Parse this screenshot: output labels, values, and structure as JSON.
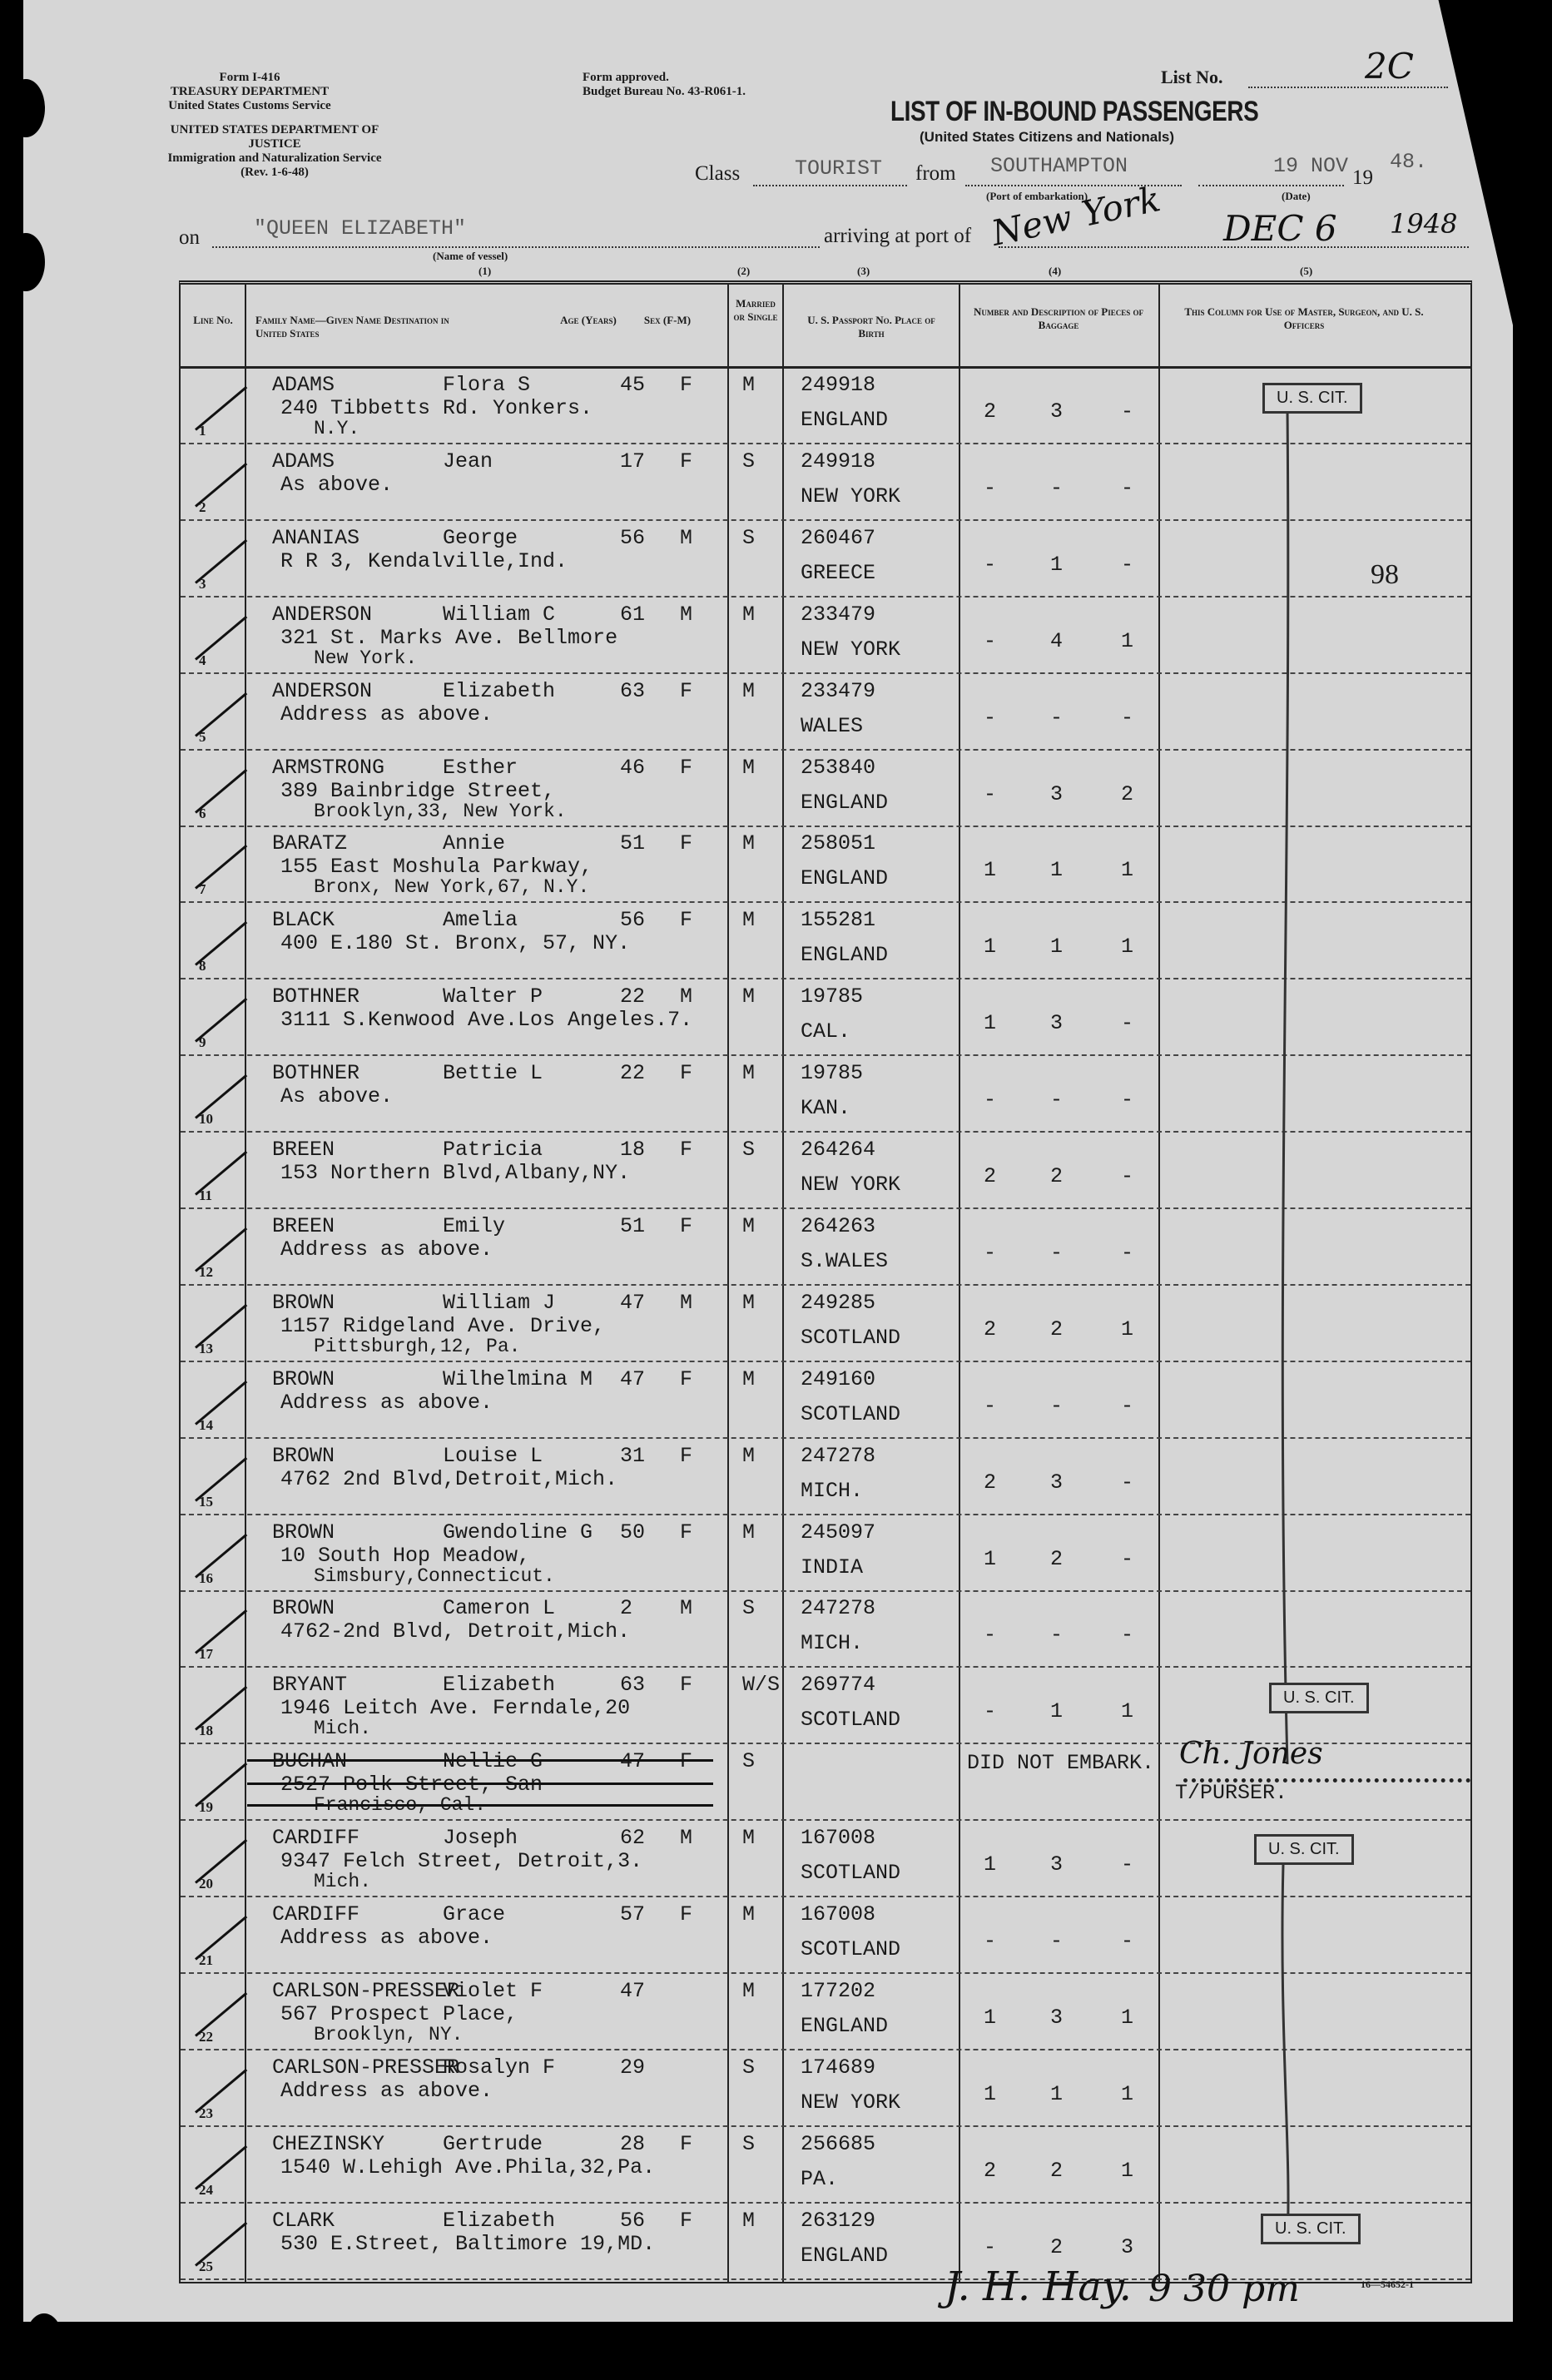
{
  "header": {
    "form": "Form I-416",
    "treasury": "TREASURY DEPARTMENT",
    "customs": "United States Customs Service",
    "justice": "UNITED STATES DEPARTMENT OF JUSTICE",
    "ins": "Immigration and Naturalization Service",
    "rev": "(Rev. 1-6-48)",
    "approved": "Form approved.",
    "budget": "Budget Bureau No. 43-R061-1.",
    "list_no_label": "List No.",
    "list_no": "2C",
    "title": "LIST OF IN-BOUND PASSENGERS",
    "subtitle": "(United States Citizens and Nationals)",
    "class_label": "Class",
    "class_value": "TOURIST",
    "from_label": "from",
    "from_value": "SOUTHAMPTON",
    "port_caption": "(Port of embarkation)",
    "date_value": "19 NOV",
    "year_prefix": "19",
    "year_value": "48.",
    "date_caption": "(Date)",
    "on_label": "on",
    "vessel": "\"QUEEN ELIZABETH\"",
    "vessel_caption": "(Name of vessel)",
    "arriving_label": "arriving at port of",
    "arrival_port": "New York",
    "arrival_date": "DEC 6",
    "arrival_year": "1948",
    "col_nums": [
      "(1)",
      "(2)",
      "(3)",
      "(4)",
      "(5)"
    ]
  },
  "columns": {
    "line": "Line No.",
    "name": "Family Name—Given Name Destination in United States",
    "age": "Age (Years)",
    "sex": "Sex (F-M)",
    "married": "Married or Single",
    "passport": "U. S. Passport No. Place of Birth",
    "baggage": "Number and Description of Pieces of Baggage",
    "officers": "This Column for Use of Master, Surgeon, and U. S. Officers"
  },
  "rows": [
    {
      "no": "1",
      "family": "ADAMS",
      "given": "Flora S",
      "age": "45",
      "sex": "F",
      "ms": "M",
      "passport": "249918",
      "birth": "ENGLAND",
      "address": "240 Tibbetts Rd. Yonkers.",
      "address2": "N.Y.",
      "bag": [
        "2",
        "3",
        "-"
      ]
    },
    {
      "no": "2",
      "family": "ADAMS",
      "given": "Jean",
      "age": "17",
      "sex": "F",
      "ms": "S",
      "passport": "249918",
      "birth": "NEW YORK",
      "address": "As above.",
      "address2": "",
      "bag": [
        "-",
        "-",
        "-"
      ]
    },
    {
      "no": "3",
      "family": "ANANIAS",
      "given": "George",
      "age": "56",
      "sex": "M",
      "ms": "S",
      "passport": "260467",
      "birth": "GREECE",
      "address": "R R 3, Kendalville,Ind.",
      "address2": "",
      "bag": [
        "-",
        "1",
        "-"
      ]
    },
    {
      "no": "4",
      "family": "ANDERSON",
      "given": "William C",
      "age": "61",
      "sex": "M",
      "ms": "M",
      "passport": "233479",
      "birth": "NEW YORK",
      "address": "321 St. Marks Ave. Bellmore",
      "address2": "New York.",
      "bag": [
        "-",
        "4",
        "1"
      ]
    },
    {
      "no": "5",
      "family": "ANDERSON",
      "given": "Elizabeth",
      "age": "63",
      "sex": "F",
      "ms": "M",
      "passport": "233479",
      "birth": "WALES",
      "address": "Address as above.",
      "address2": "",
      "bag": [
        "-",
        "-",
        "-"
      ]
    },
    {
      "no": "6",
      "family": "ARMSTRONG",
      "given": "Esther",
      "age": "46",
      "sex": "F",
      "ms": "M",
      "passport": "253840",
      "birth": "ENGLAND",
      "address": "389 Bainbridge Street,",
      "address2": "Brooklyn,33, New York.",
      "bag": [
        "-",
        "3",
        "2"
      ]
    },
    {
      "no": "7",
      "family": "BARATZ",
      "given": "Annie",
      "age": "51",
      "sex": "F",
      "ms": "M",
      "passport": "258051",
      "birth": "ENGLAND",
      "address": "155 East Moshula Parkway,",
      "address2": "Bronx, New York,67, N.Y.",
      "bag": [
        "1",
        "1",
        "1"
      ]
    },
    {
      "no": "8",
      "family": "BLACK",
      "given": "Amelia",
      "age": "56",
      "sex": "F",
      "ms": "M",
      "passport": "155281",
      "birth": "ENGLAND",
      "address": "400 E.180 St. Bronx, 57, NY.",
      "address2": "",
      "bag": [
        "1",
        "1",
        "1"
      ]
    },
    {
      "no": "9",
      "family": "BOTHNER",
      "given": "Walter P",
      "age": "22",
      "sex": "M",
      "ms": "M",
      "passport": "19785",
      "birth": "CAL.",
      "address": "3111 S.Kenwood Ave.Los Angeles.7.",
      "address2": "",
      "bag": [
        "1",
        "3",
        "-"
      ]
    },
    {
      "no": "10",
      "family": "BOTHNER",
      "given": "Bettie L",
      "age": "22",
      "sex": "F",
      "ms": "M",
      "passport": "19785",
      "birth": "KAN.",
      "address": "As above.",
      "address2": "",
      "bag": [
        "-",
        "-",
        "-"
      ]
    },
    {
      "no": "11",
      "family": "BREEN",
      "given": "Patricia",
      "age": "18",
      "sex": "F",
      "ms": "S",
      "passport": "264264",
      "birth": "NEW YORK",
      "address": "153 Northern Blvd,Albany,NY.",
      "address2": "",
      "bag": [
        "2",
        "2",
        "-"
      ]
    },
    {
      "no": "12",
      "family": "BREEN",
      "given": "Emily",
      "age": "51",
      "sex": "F",
      "ms": "M",
      "passport": "264263",
      "birth": "S.WALES",
      "address": "Address as above.",
      "address2": "",
      "bag": [
        "-",
        "-",
        "-"
      ]
    },
    {
      "no": "13",
      "family": "BROWN",
      "given": "William J",
      "age": "47",
      "sex": "M",
      "ms": "M",
      "passport": "249285",
      "birth": "SCOTLAND",
      "address": "1157 Ridgeland Ave. Drive,",
      "address2": "Pittsburgh,12, Pa.",
      "bag": [
        "2",
        "2",
        "1"
      ]
    },
    {
      "no": "14",
      "family": "BROWN",
      "given": "Wilhelmina M",
      "age": "47",
      "sex": "F",
      "ms": "M",
      "passport": "249160",
      "birth": "SCOTLAND",
      "address": "Address as above.",
      "address2": "",
      "bag": [
        "-",
        "-",
        "-"
      ]
    },
    {
      "no": "15",
      "family": "BROWN",
      "given": "Louise L",
      "age": "31",
      "sex": "F",
      "ms": "M",
      "passport": "247278",
      "birth": "MICH.",
      "address": "4762 2nd Blvd,Detroit,Mich.",
      "address2": "",
      "bag": [
        "2",
        "3",
        "-"
      ]
    },
    {
      "no": "16",
      "family": "BROWN",
      "given": "Gwendoline G",
      "age": "50",
      "sex": "F",
      "ms": "M",
      "passport": "245097",
      "birth": "INDIA",
      "address": "10 South Hop Meadow,",
      "address2": "Simsbury,Connecticut.",
      "bag": [
        "1",
        "2",
        "-"
      ]
    },
    {
      "no": "17",
      "family": "BROWN",
      "given": "Cameron L",
      "age": "2",
      "sex": "M",
      "ms": "S",
      "passport": "247278",
      "birth": "MICH.",
      "address": "4762-2nd Blvd, Detroit,Mich.",
      "address2": "",
      "bag": [
        "-",
        "-",
        "-"
      ]
    },
    {
      "no": "18",
      "family": "BRYANT",
      "given": "Elizabeth",
      "age": "63",
      "sex": "F",
      "ms": "W/S",
      "passport": "269774",
      "birth": "SCOTLAND",
      "address": "1946 Leitch Ave. Ferndale,20",
      "address2": "Mich.",
      "bag": [
        "-",
        "1",
        "1"
      ]
    },
    {
      "no": "19",
      "family": "BUCHAN",
      "given": "Nellie G",
      "age": "47",
      "sex": "F",
      "ms": "S",
      "passport": "",
      "birth": "",
      "address": "2527 Polk Street, San",
      "address2": "Francisco, Cal.",
      "bag": [
        "",
        "",
        ""
      ],
      "struck": true
    },
    {
      "no": "20",
      "family": "CARDIFF",
      "given": "Joseph",
      "age": "62",
      "sex": "M",
      "ms": "M",
      "passport": "167008",
      "birth": "SCOTLAND",
      "address": "9347 Felch Street, Detroit,3.",
      "address2": "Mich.",
      "bag": [
        "1",
        "3",
        "-"
      ]
    },
    {
      "no": "21",
      "family": "CARDIFF",
      "given": "Grace",
      "age": "57",
      "sex": "F",
      "ms": "M",
      "passport": "167008",
      "birth": "SCOTLAND",
      "address": "Address as above.",
      "address2": "",
      "bag": [
        "-",
        "-",
        "-"
      ]
    },
    {
      "no": "22",
      "family": "CARLSON-PRESSER",
      "given": "Violet F",
      "age": "47",
      "sex": "",
      "ms": "M",
      "passport": "177202",
      "birth": "ENGLAND",
      "address": "567 Prospect Place,",
      "address2": "Brooklyn, NY.",
      "bag": [
        "1",
        "3",
        "1"
      ]
    },
    {
      "no": "23",
      "family": "CARLSON-PRESSER",
      "given": "Rosalyn F",
      "age": "29",
      "sex": "",
      "ms": "S",
      "passport": "174689",
      "birth": "NEW YORK",
      "address": "Address as above.",
      "address2": "",
      "bag": [
        "1",
        "1",
        "1"
      ]
    },
    {
      "no": "24",
      "family": "CHEZINSKY",
      "given": "Gertrude",
      "age": "28",
      "sex": "F",
      "ms": "S",
      "passport": "256685",
      "birth": "PA.",
      "address": "1540 W.Lehigh Ave.Phila,32,Pa.",
      "address2": "",
      "bag": [
        "2",
        "2",
        "1"
      ]
    },
    {
      "no": "25",
      "family": "CLARK",
      "given": "Elizabeth",
      "age": "56",
      "sex": "F",
      "ms": "M",
      "passport": "263129",
      "birth": "ENGLAND",
      "address": "530 E.Street, Baltimore 19,MD.",
      "address2": "",
      "bag": [
        "-",
        "2",
        "3"
      ]
    }
  ],
  "annotations": {
    "stamp": "U. S. CIT.",
    "note_98": "98",
    "did_not_embark": "DID NOT EMBARK.",
    "purser_signature": "Ch. Jones",
    "purser": "T/PURSER.",
    "bottom_time": "9 30 pm",
    "form_number": "16—54652-1"
  }
}
